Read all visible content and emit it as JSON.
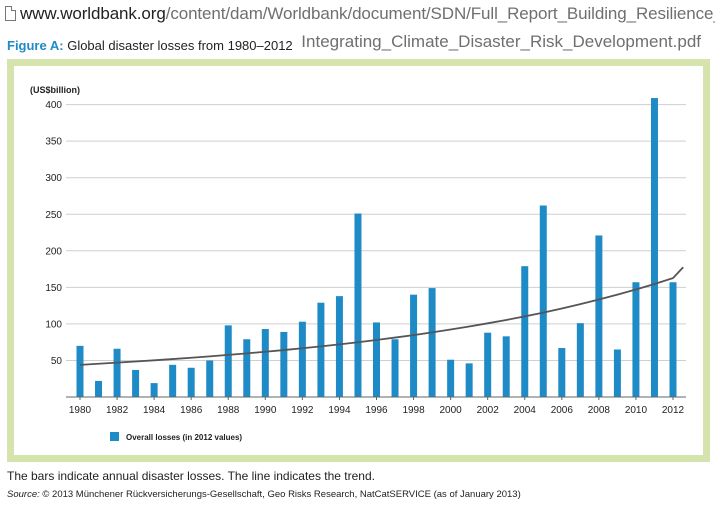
{
  "url_bar": {
    "host": "www.worldbank.org",
    "path": "/content/dam/Worldbank/document/SDN/Full_Report_Building_Resilience_",
    "path_cont": "Integrating_Climate_Disaster_Risk_Development.pdf",
    "icon": "document-icon"
  },
  "figure": {
    "label": "Figure A:",
    "title": "Global disaster losses from 1980–2012"
  },
  "caption": "The bars indicate annual disaster losses. The line indicates the trend.",
  "source": {
    "label": "Source:",
    "text": "© 2013 Münchener Rückversicherungs-Gesellschaft, Geo Risks Research, NatCatSERVICE (as of January 2013)"
  },
  "colors": {
    "bar": "#1f8bc6",
    "trend": "#555555",
    "frame": "#d4e4ac",
    "figure_label": "#1f8bc6"
  },
  "chart_data": {
    "type": "bar",
    "ylabel": "(US$billion)",
    "ylim": [
      0,
      420
    ],
    "yticks": [
      50,
      100,
      150,
      200,
      250,
      300,
      350,
      400
    ],
    "grid": true,
    "legend_position": "bottom-left",
    "x": [
      1980,
      1981,
      1982,
      1983,
      1984,
      1985,
      1986,
      1987,
      1988,
      1989,
      1990,
      1991,
      1992,
      1993,
      1994,
      1995,
      1996,
      1997,
      1998,
      1999,
      2000,
      2001,
      2002,
      2003,
      2004,
      2005,
      2006,
      2007,
      2008,
      2009,
      2010,
      2011,
      2012
    ],
    "xticks": [
      "1980",
      "1982",
      "1984",
      "1986",
      "1988",
      "1990",
      "1992",
      "1994",
      "1996",
      "1998",
      "2000",
      "2002",
      "2004",
      "2006",
      "2008",
      "2010",
      "2012"
    ],
    "series": [
      {
        "name": "Overall losses (in 2012 values)",
        "type": "bar",
        "values": [
          70,
          22,
          66,
          37,
          19,
          44,
          40,
          50,
          98,
          79,
          93,
          89,
          103,
          129,
          138,
          251,
          102,
          79,
          140,
          149,
          51,
          46,
          88,
          83,
          179,
          262,
          67,
          101,
          221,
          65,
          157,
          409,
          157
        ]
      },
      {
        "type": "line",
        "values": [
          44,
          45.5,
          47,
          48.6,
          50.2,
          51.9,
          53.7,
          55.6,
          57.6,
          59.7,
          61.9,
          64.2,
          66.7,
          69.3,
          72,
          74.9,
          78,
          81.3,
          84.7,
          88.4,
          92.3,
          96.4,
          100.8,
          105.4,
          110.3,
          115.5,
          121.1,
          127,
          133.3,
          140,
          147.1,
          154.6,
          162.6
        ]
      }
    ]
  }
}
